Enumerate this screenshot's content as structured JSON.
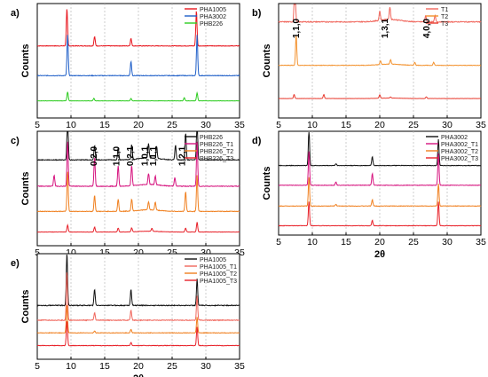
{
  "chart_data": [
    {
      "panel": "a)",
      "type": "line",
      "xlabel": "2θ",
      "ylabel": "Counts",
      "xlim": [
        5,
        35
      ],
      "xticks": [
        5,
        10,
        15,
        20,
        25,
        30,
        35
      ],
      "legend_position": "top-right",
      "grid": "vertical dashed",
      "series": [
        {
          "name": "PHA1005",
          "color": "#e8171f",
          "peaks": [
            [
              9.4,
              1.0
            ],
            [
              13.5,
              0.25
            ],
            [
              18.9,
              0.2
            ],
            [
              28.6,
              0.95
            ]
          ]
        },
        {
          "name": "PHA3002",
          "color": "#1f5fc8",
          "peaks": [
            [
              9.5,
              1.0
            ],
            [
              18.9,
              0.35
            ],
            [
              28.7,
              1.0
            ]
          ]
        },
        {
          "name": "PHB226",
          "color": "#2ecc21",
          "peaks": [
            [
              9.5,
              0.55
            ],
            [
              13.4,
              0.15
            ],
            [
              18.9,
              0.15
            ],
            [
              26.8,
              0.2
            ],
            [
              28.7,
              0.5
            ]
          ]
        }
      ]
    },
    {
      "panel": "b)",
      "type": "line",
      "xlabel": "2θ",
      "ylabel": "Counts",
      "xlim": [
        5,
        35
      ],
      "xticks": [
        5,
        10,
        15,
        20,
        25,
        30,
        35
      ],
      "legend_position": "top-right",
      "grid": "vertical dashed",
      "annotations": [
        {
          "text": "1,1,0",
          "x": 8.0
        },
        {
          "text": "1,3,1",
          "x": 21.2
        },
        {
          "text": "4,0,0",
          "x": 27.4
        }
      ],
      "series": [
        {
          "name": "T1",
          "color": "#f0665c",
          "peaks": [
            [
              7.4,
              1.0
            ],
            [
              20.0,
              0.15
            ],
            [
              21.5,
              0.2
            ],
            [
              26.8,
              0.1
            ],
            [
              28.2,
              0.1
            ]
          ]
        },
        {
          "name": "T2",
          "color": "#f3922e",
          "peaks": [
            [
              7.6,
              1.0
            ],
            [
              20.1,
              0.12
            ],
            [
              21.6,
              0.15
            ],
            [
              25.2,
              0.1
            ],
            [
              28.0,
              0.1
            ]
          ]
        },
        {
          "name": "T3",
          "color": "#e83b2f",
          "peaks": [
            [
              7.3,
              0.35
            ],
            [
              11.7,
              0.35
            ],
            [
              20.0,
              0.3
            ],
            [
              21.6,
              0.1
            ],
            [
              26.9,
              0.15
            ]
          ]
        }
      ]
    },
    {
      "panel": "c)",
      "type": "line",
      "xlabel": "2θ",
      "ylabel": "Counts",
      "xlim": [
        5,
        35
      ],
      "xticks": [
        5,
        10,
        15,
        20,
        25,
        30,
        35
      ],
      "legend_position": "top-right",
      "grid": "vertical dashed",
      "annotations": [
        {
          "text": "0,2,0",
          "x": 13.8
        },
        {
          "text": "1,1,0",
          "x": 17.2
        },
        {
          "text": "0,2,1",
          "x": 19.2
        },
        {
          "text": "1,0,1",
          "x": 21.4
        },
        {
          "text": "1,1,1",
          "x": 22.6
        },
        {
          "text": "1,2,1",
          "x": 26.9
        }
      ],
      "series": [
        {
          "name": "PHB226",
          "color": "#111111",
          "peaks": [
            [
              9.5,
              1.0
            ],
            [
              13.5,
              0.3
            ],
            [
              17.0,
              0.25
            ],
            [
              19.0,
              0.3
            ],
            [
              21.5,
              0.3
            ],
            [
              22.7,
              0.25
            ],
            [
              25.5,
              0.3
            ],
            [
              27.0,
              0.55
            ],
            [
              28.7,
              0.9
            ]
          ]
        },
        {
          "name": "PHB226_T1",
          "color": "#d6147f",
          "peaks": [
            [
              7.5,
              0.25
            ],
            [
              9.5,
              1.0
            ],
            [
              13.5,
              0.65
            ],
            [
              17.0,
              0.45
            ],
            [
              19.0,
              0.45
            ],
            [
              21.5,
              0.25
            ],
            [
              22.5,
              0.2
            ],
            [
              25.4,
              0.2
            ],
            [
              28.7,
              1.0
            ]
          ]
        },
        {
          "name": "PHB226_T2",
          "color": "#f08020",
          "peaks": [
            [
              9.5,
              1.0
            ],
            [
              13.5,
              0.4
            ],
            [
              17.0,
              0.3
            ],
            [
              19.0,
              0.3
            ],
            [
              21.5,
              0.2
            ],
            [
              22.5,
              0.2
            ],
            [
              27.0,
              0.5
            ],
            [
              28.7,
              0.9
            ]
          ]
        },
        {
          "name": "PHB226_T3",
          "color": "#e8222a",
          "peaks": [
            [
              9.5,
              0.35
            ],
            [
              13.5,
              0.25
            ],
            [
              17.0,
              0.2
            ],
            [
              19.0,
              0.2
            ],
            [
              22.0,
              0.15
            ],
            [
              27.0,
              0.2
            ],
            [
              28.7,
              0.5
            ]
          ]
        }
      ]
    },
    {
      "panel": "d)",
      "type": "line",
      "xlabel": "2θ",
      "ylabel": "Counts",
      "xlim": [
        5,
        35
      ],
      "xticks": [
        5,
        10,
        15,
        20,
        25,
        30,
        35
      ],
      "legend_position": "top-right",
      "grid": "vertical dashed",
      "series": [
        {
          "name": "PHA3002",
          "color": "#111111",
          "peaks": [
            [
              9.5,
              1.0
            ],
            [
              13.5,
              0.05
            ],
            [
              18.9,
              0.25
            ],
            [
              28.7,
              0.75
            ]
          ]
        },
        {
          "name": "PHA3002_T1",
          "color": "#d6147f",
          "peaks": [
            [
              9.5,
              1.0
            ],
            [
              13.5,
              0.1
            ],
            [
              18.9,
              0.35
            ],
            [
              28.7,
              0.95
            ]
          ]
        },
        {
          "name": "PHA3002_T2",
          "color": "#f08020",
          "peaks": [
            [
              9.5,
              0.9
            ],
            [
              13.5,
              0.05
            ],
            [
              18.9,
              0.2
            ],
            [
              28.7,
              0.7
            ]
          ]
        },
        {
          "name": "PHA3002_T3",
          "color": "#e8222a",
          "peaks": [
            [
              9.5,
              0.9
            ],
            [
              18.9,
              0.2
            ],
            [
              28.7,
              0.9
            ]
          ]
        }
      ]
    },
    {
      "panel": "e)",
      "type": "line",
      "xlabel": "2θ",
      "ylabel": "Counts",
      "xlim": [
        5,
        35
      ],
      "xticks": [
        5,
        10,
        15,
        20,
        25,
        30,
        35
      ],
      "legend_position": "top-right",
      "grid": "vertical dashed",
      "series": [
        {
          "name": "PHA1005",
          "color": "#111111",
          "peaks": [
            [
              9.4,
              1.0
            ],
            [
              13.5,
              0.3
            ],
            [
              18.9,
              0.3
            ],
            [
              28.7,
              0.5
            ]
          ]
        },
        {
          "name": "PHA1005_T1",
          "color": "#f0665c",
          "peaks": [
            [
              9.4,
              1.0
            ],
            [
              13.5,
              0.15
            ],
            [
              18.9,
              0.2
            ],
            [
              28.7,
              0.5
            ]
          ]
        },
        {
          "name": "PHA1005_T2",
          "color": "#f08020",
          "peaks": [
            [
              9.4,
              0.8
            ],
            [
              13.5,
              0.05
            ],
            [
              18.9,
              0.1
            ],
            [
              28.7,
              0.45
            ]
          ]
        },
        {
          "name": "PHA1005_T3",
          "color": "#e8222a",
          "peaks": [
            [
              9.4,
              0.8
            ],
            [
              18.9,
              0.1
            ],
            [
              28.7,
              0.6
            ]
          ]
        }
      ]
    }
  ]
}
